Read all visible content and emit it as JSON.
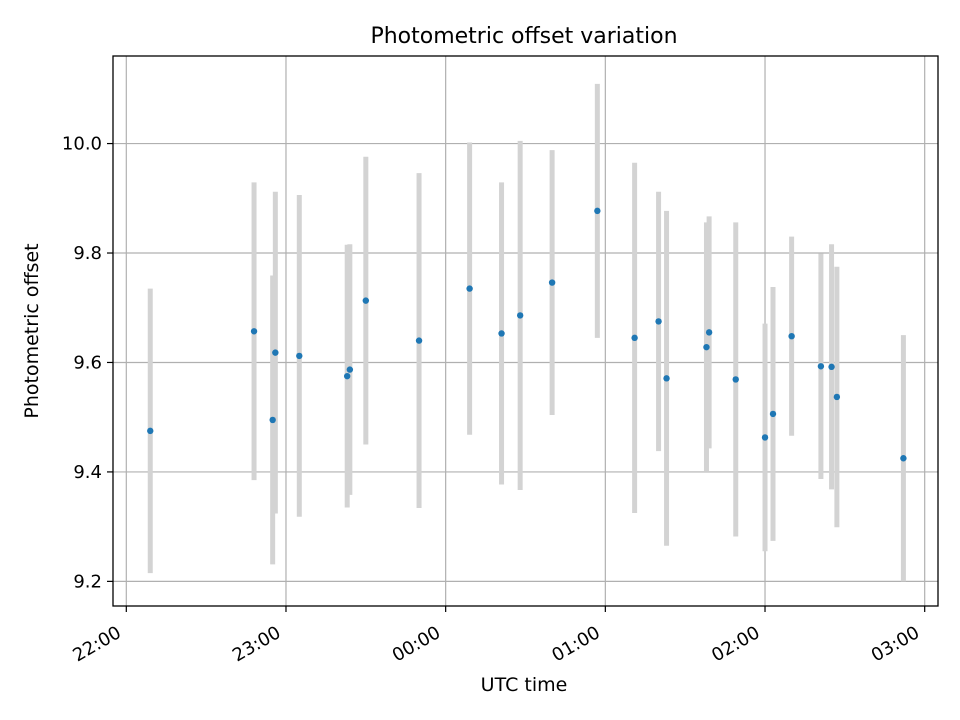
{
  "chart_data": {
    "type": "scatter",
    "title": "Photometric offset variation",
    "xlabel": "UTC time",
    "ylabel": "Photometric offset",
    "x_axis_kind": "time",
    "x_ticks": [
      "22:00",
      "23:00",
      "00:00",
      "01:00",
      "02:00",
      "03:00"
    ],
    "y_ticks": [
      "9.2",
      "9.4",
      "9.6",
      "9.8",
      "10.0"
    ],
    "xlim": [
      "21:55",
      "03:05"
    ],
    "ylim": [
      9.155,
      10.16
    ],
    "grid": true,
    "colors": {
      "marker": "#1f77b4",
      "errorbar": "#d3d3d3",
      "grid": "#b0b0b0"
    },
    "points": [
      {
        "time": "22:09",
        "y": 9.475,
        "yerr": 0.26
      },
      {
        "time": "22:48",
        "y": 9.657,
        "yerr": 0.272
      },
      {
        "time": "22:55",
        "y": 9.495,
        "yerr": 0.264
      },
      {
        "time": "22:56",
        "y": 9.618,
        "yerr": 0.294
      },
      {
        "time": "23:05",
        "y": 9.612,
        "yerr": 0.294
      },
      {
        "time": "23:23",
        "y": 9.575,
        "yerr": 0.24
      },
      {
        "time": "23:24",
        "y": 9.587,
        "yerr": 0.229
      },
      {
        "time": "23:30",
        "y": 9.713,
        "yerr": 0.263
      },
      {
        "time": "23:50",
        "y": 9.64,
        "yerr": 0.306
      },
      {
        "time": "00:09",
        "y": 9.735,
        "yerr": 0.267
      },
      {
        "time": "00:21",
        "y": 9.653,
        "yerr": 0.276
      },
      {
        "time": "00:28",
        "y": 9.686,
        "yerr": 0.319
      },
      {
        "time": "00:40",
        "y": 9.746,
        "yerr": 0.242
      },
      {
        "time": "00:57",
        "y": 9.877,
        "yerr": 0.232
      },
      {
        "time": "01:11",
        "y": 9.645,
        "yerr": 0.32
      },
      {
        "time": "01:20",
        "y": 9.675,
        "yerr": 0.237
      },
      {
        "time": "01:23",
        "y": 9.571,
        "yerr": 0.306
      },
      {
        "time": "01:38",
        "y": 9.628,
        "yerr": 0.228
      },
      {
        "time": "01:39",
        "y": 9.655,
        "yerr": 0.212
      },
      {
        "time": "01:49",
        "y": 9.569,
        "yerr": 0.287
      },
      {
        "time": "02:00",
        "y": 9.463,
        "yerr": 0.208
      },
      {
        "time": "02:03",
        "y": 9.506,
        "yerr": 0.232
      },
      {
        "time": "02:10",
        "y": 9.648,
        "yerr": 0.182
      },
      {
        "time": "02:21",
        "y": 9.593,
        "yerr": 0.206
      },
      {
        "time": "02:25",
        "y": 9.592,
        "yerr": 0.224
      },
      {
        "time": "02:27",
        "y": 9.537,
        "yerr": 0.238
      },
      {
        "time": "02:52",
        "y": 9.425,
        "yerr": 0.225
      }
    ]
  }
}
